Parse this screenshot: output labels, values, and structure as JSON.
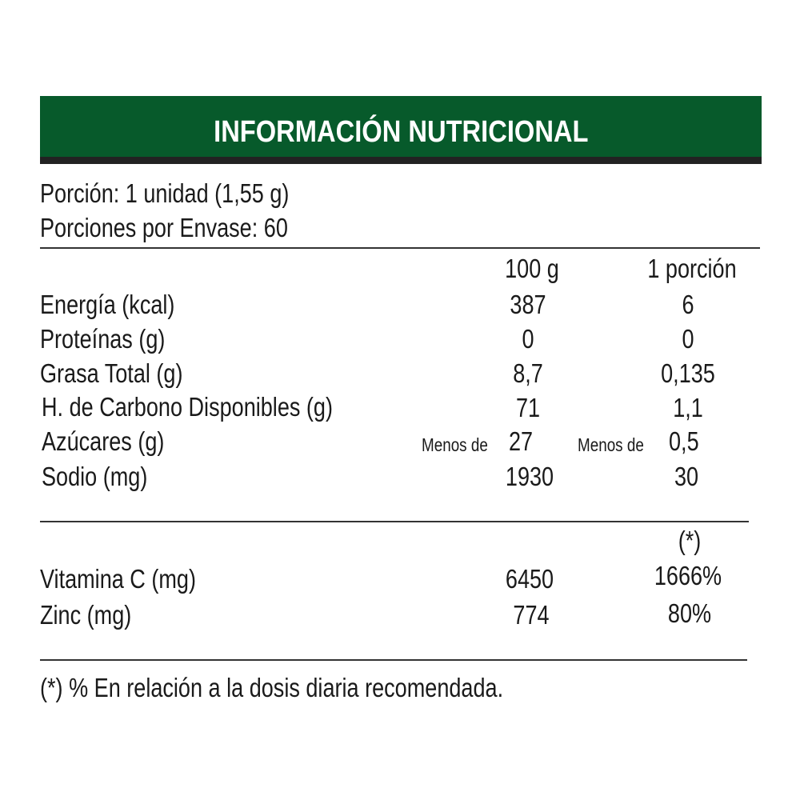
{
  "title": "INFORMACIÓN NUTRICIONAL",
  "colors": {
    "header_green": "#075a2b",
    "header_strip": "#222222"
  },
  "serving": {
    "portion": "Porción: 1 unidad (1,55 g)",
    "portions_per_package": "Porciones por Envase: 60"
  },
  "columns": {
    "per_100g": "100 g",
    "per_portion": "1 porción"
  },
  "nutrients": [
    {
      "name": "Energía (kcal)",
      "per_100g": "387",
      "per_portion": "6"
    },
    {
      "name": "Proteínas (g)",
      "per_100g": "0",
      "per_portion": "0"
    },
    {
      "name": "Grasa Total (g)",
      "per_100g": "8,7",
      "per_portion": "0,135"
    },
    {
      "name": "H. de Carbono Disponibles (g)",
      "per_100g": "71",
      "per_portion": "1,1"
    },
    {
      "name": "Azúcares (g)",
      "prefix": "Menos de",
      "per_100g": "27",
      "per_portion": "0,5"
    },
    {
      "name": "Sodio (mg)",
      "per_100g": "1930",
      "per_portion": "30"
    }
  ],
  "micronutrients_header": "(*)",
  "micronutrients": [
    {
      "name": "Vitamina C (mg)",
      "per_100g": "6450",
      "percent": "1666%"
    },
    {
      "name": "Zinc (mg)",
      "per_100g": "774",
      "percent": "80%"
    }
  ],
  "footnote": "(*) % En relación a la dosis diaria recomendada."
}
